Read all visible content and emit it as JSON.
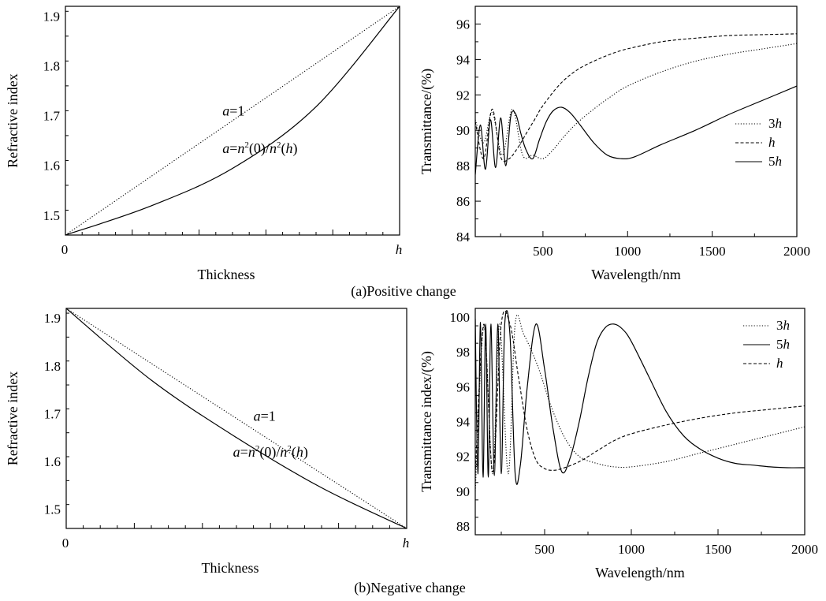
{
  "captions": {
    "top": "(a)Positive change",
    "bottom": "(b)Negative change"
  },
  "chart_data": [
    {
      "id": "a-left",
      "type": "line",
      "xlabel": "Thickness",
      "ylabel": "Refractive index",
      "xlim": [
        0,
        1
      ],
      "ylim": [
        1.46,
        1.92
      ],
      "xtick_labels": [
        "0",
        "h"
      ],
      "yticks": [
        1.5,
        1.6,
        1.7,
        1.8,
        1.9
      ],
      "grid": false,
      "series": [
        {
          "name": "a=1",
          "dash": "dotted",
          "x": [
            0,
            0.25,
            0.5,
            0.75,
            1
          ],
          "y": [
            1.46,
            1.575,
            1.69,
            1.805,
            1.92
          ]
        },
        {
          "name": "a=n²(0)/n²(h)",
          "dash": "solid",
          "x": [
            0,
            0.25,
            0.5,
            0.75,
            1
          ],
          "y": [
            1.46,
            1.517,
            1.594,
            1.718,
            1.92
          ]
        }
      ],
      "annotations": [
        {
          "text": "a=1",
          "x": 0.47,
          "y": 1.7
        },
        {
          "text": "a=n²(0)/n²(h)",
          "x": 0.47,
          "y": 1.625
        }
      ]
    },
    {
      "id": "a-right",
      "type": "line",
      "xlabel": "Wavelength/nm",
      "ylabel": "Transmittance/(%)",
      "xlim": [
        100,
        2000
      ],
      "ylim": [
        84,
        97
      ],
      "xticks": [
        500,
        1000,
        1500,
        2000
      ],
      "yticks": [
        84,
        86,
        88,
        90,
        92,
        94,
        96
      ],
      "grid": false,
      "legend": "right",
      "series": [
        {
          "name": "3h",
          "dash": "dotted",
          "x": [
            100,
            150,
            200,
            260,
            320,
            380,
            440,
            500,
            560,
            620,
            700,
            800,
            900,
            1000,
            1200,
            1400,
            1600,
            1800,
            2000
          ],
          "y": [
            90.6,
            89.3,
            91.0,
            88.6,
            91.2,
            88.6,
            88.6,
            88.4,
            88.9,
            89.6,
            90.4,
            91.2,
            91.9,
            92.5,
            93.3,
            93.9,
            94.3,
            94.6,
            94.9
          ]
        },
        {
          "name": "h",
          "dash": "dashed",
          "x": [
            100,
            150,
            200,
            250,
            300,
            350,
            400,
            450,
            500,
            600,
            700,
            800,
            900,
            1000,
            1200,
            1400,
            1600,
            1800,
            2000
          ],
          "y": [
            90.5,
            88.4,
            91.2,
            88.5,
            88.4,
            89.0,
            89.8,
            90.6,
            91.4,
            92.6,
            93.4,
            93.9,
            94.3,
            94.6,
            95.0,
            95.2,
            95.35,
            95.4,
            95.45
          ]
        },
        {
          "name": "5h",
          "dash": "solid",
          "x": [
            100,
            130,
            160,
            190,
            220,
            250,
            280,
            310,
            340,
            370,
            400,
            440,
            480,
            520,
            560,
            610,
            660,
            720,
            800,
            880,
            960,
            1040,
            1200,
            1400,
            1600,
            1800,
            2000
          ],
          "y": [
            87.5,
            90.3,
            87.8,
            90.6,
            87.9,
            90.7,
            88.0,
            90.8,
            90.9,
            89.8,
            88.9,
            88.4,
            89.5,
            90.5,
            91.1,
            91.3,
            91.0,
            90.3,
            89.3,
            88.6,
            88.4,
            88.5,
            89.2,
            90.0,
            90.9,
            91.7,
            92.5
          ]
        }
      ]
    },
    {
      "id": "b-left",
      "type": "line",
      "xlabel": "Thickness",
      "ylabel": "Refractive index",
      "xlim": [
        0,
        1
      ],
      "ylim": [
        1.46,
        1.92
      ],
      "xtick_labels": [
        "0",
        "h"
      ],
      "yticks": [
        1.5,
        1.6,
        1.7,
        1.8,
        1.9
      ],
      "grid": false,
      "series": [
        {
          "name": "a=1",
          "dash": "dotted",
          "x": [
            0,
            0.25,
            0.5,
            0.75,
            1
          ],
          "y": [
            1.92,
            1.805,
            1.69,
            1.575,
            1.46
          ]
        },
        {
          "name": "a=n²(0)/n²(h)",
          "dash": "solid",
          "x": [
            0,
            0.25,
            0.5,
            0.75,
            1
          ],
          "y": [
            1.92,
            1.77,
            1.65,
            1.545,
            1.46
          ]
        }
      ],
      "annotations": [
        {
          "text": "a=1",
          "x": 0.55,
          "y": 1.685
        },
        {
          "text": "a=n²(0)/n²(h)",
          "x": 0.49,
          "y": 1.61
        }
      ]
    },
    {
      "id": "b-right",
      "type": "line",
      "xlabel": "Wavelength/nm",
      "ylabel": "Transmittance index/(%)",
      "xlim": [
        100,
        2000
      ],
      "ylim": [
        87.5,
        100.5
      ],
      "xticks": [
        500,
        1000,
        1500,
        2000
      ],
      "yticks": [
        88,
        90,
        92,
        94,
        96,
        98,
        100
      ],
      "grid": false,
      "legend": "top-right",
      "series": [
        {
          "name": "3h",
          "dash": "dotted",
          "x": [
            100,
            150,
            200,
            240,
            290,
            330,
            380,
            460,
            540,
            620,
            700,
            800,
            900,
            1000,
            1200,
            1400,
            1600,
            1800,
            2000
          ],
          "y": [
            90.0,
            99.5,
            91.0,
            99.6,
            91.0,
            99.6,
            99.0,
            97.2,
            94.8,
            93.0,
            92.0,
            91.6,
            91.4,
            91.4,
            91.7,
            92.2,
            92.7,
            93.2,
            93.7
          ]
        },
        {
          "name": "5h",
          "dash": "solid",
          "x": [
            100,
            115,
            130,
            145,
            160,
            175,
            190,
            210,
            230,
            250,
            270,
            300,
            330,
            360,
            400,
            450,
            500,
            550,
            600,
            650,
            700,
            750,
            800,
            850,
            900,
            950,
            1000,
            1100,
            1200,
            1300,
            1400,
            1500,
            1600,
            1700,
            1800,
            1900,
            2000
          ],
          "y": [
            99.9,
            91.0,
            99.7,
            90.8,
            99.6,
            90.8,
            99.6,
            90.9,
            99.6,
            91.0,
            99.6,
            99.0,
            91.0,
            91.5,
            96.0,
            99.6,
            97.0,
            93.5,
            91.1,
            92.0,
            94.0,
            96.5,
            98.5,
            99.4,
            99.6,
            99.3,
            98.6,
            96.6,
            94.6,
            93.2,
            92.4,
            91.9,
            91.6,
            91.5,
            91.4,
            91.35,
            91.35
          ]
        },
        {
          "name": "h",
          "dash": "dashed",
          "x": [
            100,
            150,
            200,
            250,
            300,
            350,
            400,
            450,
            500,
            550,
            600,
            700,
            800,
            900,
            1000,
            1200,
            1400,
            1600,
            1800,
            2000
          ],
          "y": [
            91.0,
            99.6,
            91.1,
            99.6,
            99.6,
            96.5,
            93.5,
            91.8,
            91.3,
            91.2,
            91.3,
            91.7,
            92.3,
            92.9,
            93.3,
            93.8,
            94.2,
            94.5,
            94.7,
            94.9
          ]
        }
      ]
    }
  ]
}
